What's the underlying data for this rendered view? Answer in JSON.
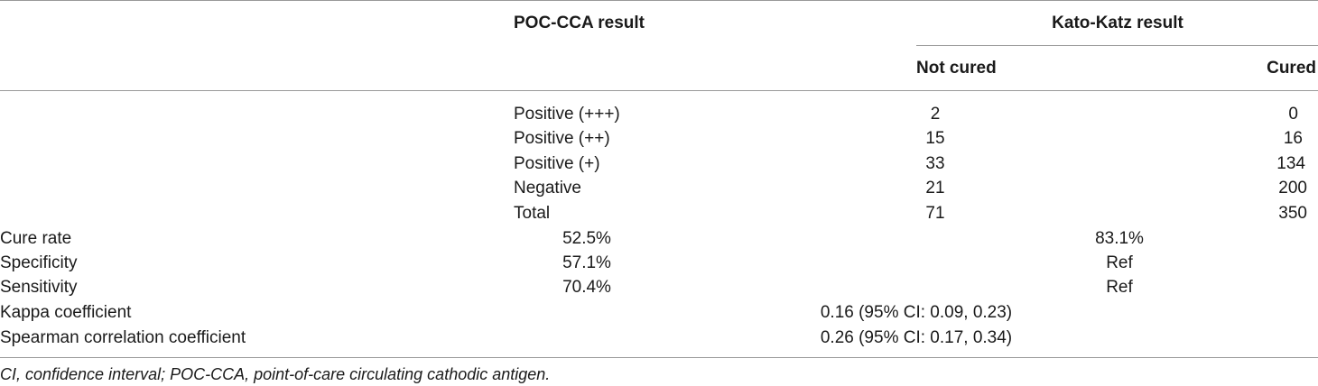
{
  "header": {
    "poc_cca_result": "POC-CCA result",
    "kato_katz_result": "Kato-Katz result",
    "not_cured": "Not cured",
    "cured": "Cured"
  },
  "rows": [
    {
      "label": "Positive (+++)",
      "not_cured": "2",
      "cured": "0"
    },
    {
      "label": "Positive (++)",
      "not_cured": "15",
      "cured": "16"
    },
    {
      "label": "Positive (+)",
      "not_cured": "33",
      "cured": "134"
    },
    {
      "label": "Negative",
      "not_cured": "21",
      "cured": "200"
    },
    {
      "label": "Total",
      "not_cured": "71",
      "cured": "350"
    }
  ],
  "stats": [
    {
      "label": "Cure rate",
      "poc": "52.5%",
      "kato": "83.1%"
    },
    {
      "label": "Specificity",
      "poc": "57.1%",
      "kato": "Ref"
    },
    {
      "label": "Sensitivity",
      "poc": "70.4%",
      "kato": "Ref"
    }
  ],
  "agreement": [
    {
      "label": "Kappa coefficient",
      "value": "0.16 (95% CI: 0.09, 0.23)"
    },
    {
      "label": "Spearman correlation coefficient",
      "value": "0.26 (95% CI: 0.17, 0.34)"
    }
  ],
  "footnote": "CI, confidence interval; POC-CCA, point-of-care circulating cathodic antigen."
}
